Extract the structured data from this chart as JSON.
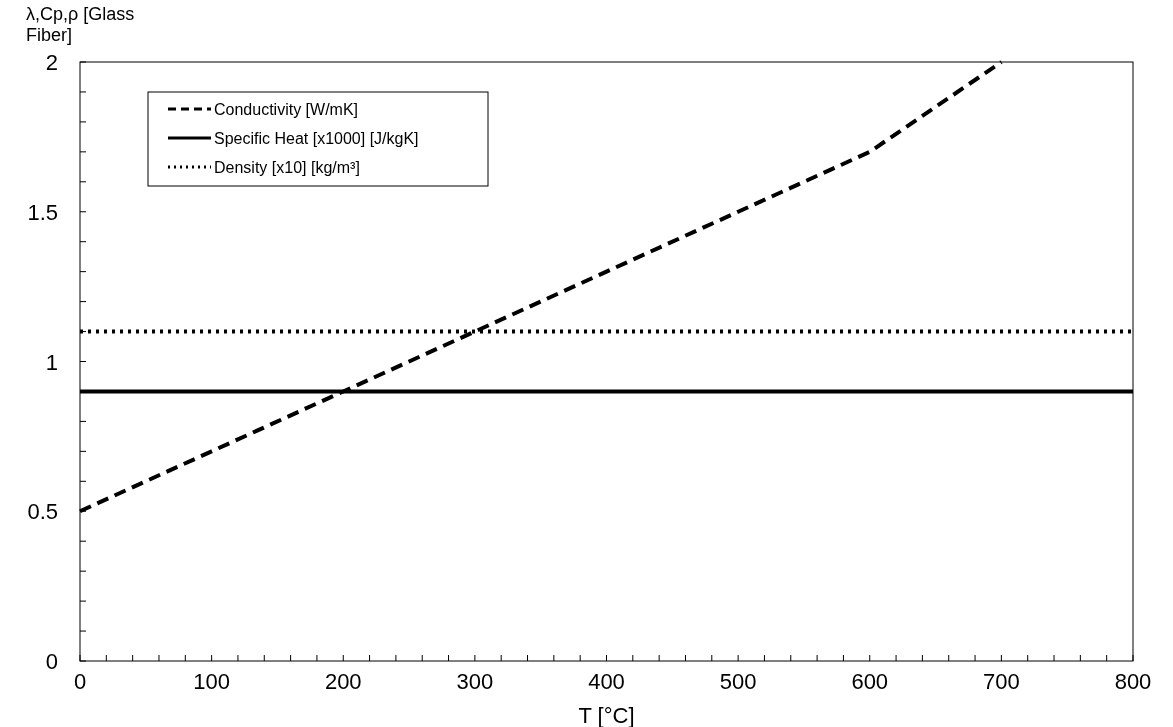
{
  "chart_data": {
    "type": "line",
    "ylabel": "λ,Cp,ρ [Glass Fiber]",
    "xlabel": "T [°C]",
    "xlim": [
      0,
      800
    ],
    "ylim": [
      0,
      2
    ],
    "xticks": [
      0,
      {
        "value": 20,
        "label": null
      },
      {
        "value": 40,
        "label": null
      },
      {
        "value": 60,
        "label": null
      },
      {
        "value": 80,
        "label": null
      },
      100,
      {
        "value": 120,
        "label": null
      },
      {
        "value": 140,
        "label": null
      },
      {
        "value": 160,
        "label": null
      },
      {
        "value": 180,
        "label": null
      },
      200,
      {
        "value": 220,
        "label": null
      },
      {
        "value": 240,
        "label": null
      },
      {
        "value": 260,
        "label": null
      },
      {
        "value": 280,
        "label": null
      },
      300,
      {
        "value": 320,
        "label": null
      },
      {
        "value": 340,
        "label": null
      },
      {
        "value": 360,
        "label": null
      },
      {
        "value": 380,
        "label": null
      },
      400,
      {
        "value": 420,
        "label": null
      },
      {
        "value": 440,
        "label": null
      },
      {
        "value": 460,
        "label": null
      },
      {
        "value": 480,
        "label": null
      },
      500,
      {
        "value": 520,
        "label": null
      },
      {
        "value": 540,
        "label": null
      },
      {
        "value": 560,
        "label": null
      },
      {
        "value": 580,
        "label": null
      },
      600,
      {
        "value": 620,
        "label": null
      },
      {
        "value": 640,
        "label": null
      },
      {
        "value": 660,
        "label": null
      },
      {
        "value": 680,
        "label": null
      },
      700,
      {
        "value": 720,
        "label": null
      },
      {
        "value": 740,
        "label": null
      },
      {
        "value": 760,
        "label": null
      },
      {
        "value": 780,
        "label": null
      },
      800
    ],
    "yticks": [
      0,
      {
        "value": 0.1,
        "label": null
      },
      {
        "value": 0.2,
        "label": null
      },
      {
        "value": 0.3,
        "label": null
      },
      {
        "value": 0.4,
        "label": null
      },
      0.5,
      {
        "value": 0.6,
        "label": null
      },
      {
        "value": 0.7,
        "label": null
      },
      {
        "value": 0.8,
        "label": null
      },
      {
        "value": 0.9,
        "label": null
      },
      1,
      {
        "value": 1.1,
        "label": null
      },
      {
        "value": 1.2,
        "label": null
      },
      {
        "value": 1.3,
        "label": null
      },
      {
        "value": 1.4,
        "label": null
      },
      1.5,
      {
        "value": 1.6,
        "label": null
      },
      {
        "value": 1.7,
        "label": null
      },
      {
        "value": 1.8,
        "label": null
      },
      {
        "value": 1.9,
        "label": null
      },
      2
    ],
    "legend": "top left",
    "series": [
      {
        "name": "Conductivity [W/mK]",
        "color": "#000000",
        "line_style": "dashed",
        "x": [
          0,
          100,
          200,
          300,
          400,
          500,
          600,
          700
        ],
        "values": [
          0.5,
          0.7,
          0.9,
          1.1,
          1.3,
          1.5,
          1.7,
          2.0
        ]
      },
      {
        "name": "Specific Heat [x1000] [J/kgK]",
        "color": "#000000",
        "line_style": "solid",
        "x": [
          0,
          800
        ],
        "values": [
          0.9,
          0.9
        ]
      },
      {
        "name": "Density [x10] [kg/m³]",
        "color": "#000000",
        "line_style": "dotted",
        "x": [
          0,
          800
        ],
        "values": [
          1.1,
          1.1
        ]
      }
    ]
  }
}
